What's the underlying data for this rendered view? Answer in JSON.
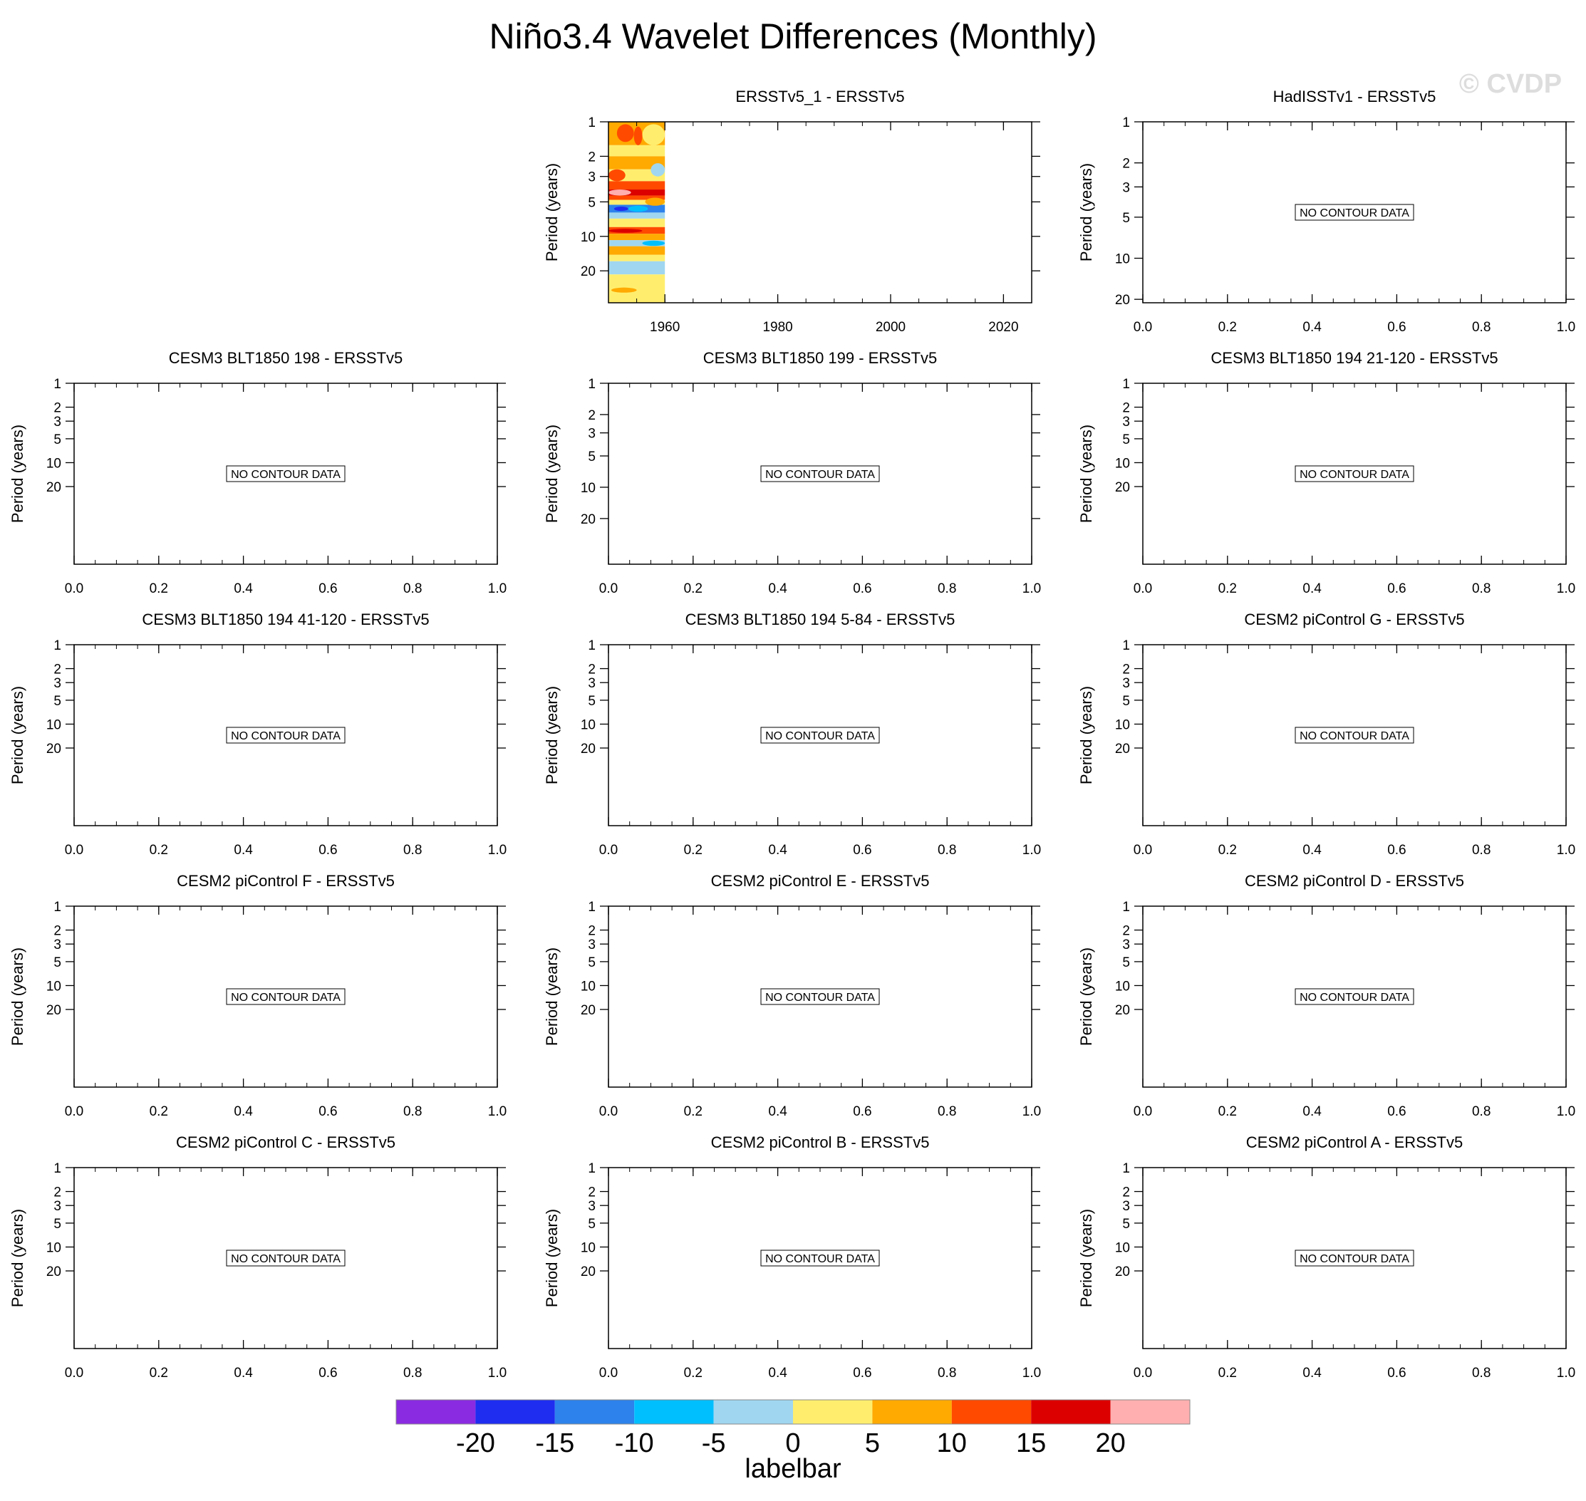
{
  "figure": {
    "title": "Niño3.4 Wavelet Differences (Monthly)",
    "watermark": "© CVDP",
    "ylabel": "Period (years)",
    "no_data_text": "NO CONTOUR DATA"
  },
  "chart_data": [
    {
      "type": "heatmap",
      "title": "ERSSTv5_1 - ERSSTv5",
      "ylabel": "Period (years)",
      "x_ticks": [
        1960,
        1980,
        2000,
        2020
      ],
      "xlim": [
        1950,
        2025
      ],
      "y_ticks": [
        1,
        2,
        3,
        5,
        10,
        20
      ],
      "y_scale": "log",
      "y_reversed": true,
      "ylim": [
        1,
        38
      ],
      "data_x_range": [
        1950,
        1960
      ],
      "bands": [
        {
          "p0": 1.0,
          "p1": 1.6,
          "level": 5
        },
        {
          "p0": 1.6,
          "p1": 2.0,
          "level": 0
        },
        {
          "p0": 2.0,
          "p1": 2.6,
          "level": 5
        },
        {
          "p0": 2.6,
          "p1": 3.3,
          "level": 0
        },
        {
          "p0": 3.3,
          "p1": 3.9,
          "level": 10
        },
        {
          "p0": 3.9,
          "p1": 4.4,
          "level": 15
        },
        {
          "p0": 4.4,
          "p1": 4.8,
          "level": 10
        },
        {
          "p0": 4.8,
          "p1": 5.3,
          "level": 0
        },
        {
          "p0": 5.3,
          "p1": 6.2,
          "level": -15
        },
        {
          "p0": 6.2,
          "p1": 7.0,
          "level": -5
        },
        {
          "p0": 7.0,
          "p1": 8.3,
          "level": 0
        },
        {
          "p0": 8.3,
          "p1": 9.5,
          "level": 10
        },
        {
          "p0": 9.5,
          "p1": 10.8,
          "level": 5
        },
        {
          "p0": 10.8,
          "p1": 12.2,
          "level": -5
        },
        {
          "p0": 12.2,
          "p1": 14.5,
          "level": 5
        },
        {
          "p0": 14.5,
          "p1": 16.5,
          "level": 0
        },
        {
          "p0": 16.5,
          "p1": 21.5,
          "level": -5
        },
        {
          "p0": 21.5,
          "p1": 38.0,
          "level": 0
        }
      ],
      "blobs": [
        {
          "x0": 1951.5,
          "x1": 1954.5,
          "p0": 1.05,
          "p1": 1.5,
          "level": 10
        },
        {
          "x0": 1954.5,
          "x1": 1956.0,
          "p0": 1.1,
          "p1": 1.6,
          "level": 10
        },
        {
          "x0": 1956.0,
          "x1": 1960.0,
          "p0": 1.05,
          "p1": 1.6,
          "level": 0
        },
        {
          "x0": 1950.0,
          "x1": 1953.0,
          "p0": 2.6,
          "p1": 3.3,
          "level": 10
        },
        {
          "x0": 1957.5,
          "x1": 1960.0,
          "p0": 2.3,
          "p1": 3.0,
          "level": -5
        },
        {
          "x0": 1950.0,
          "x1": 1954.0,
          "p0": 3.9,
          "p1": 4.4,
          "level": 20
        },
        {
          "x0": 1951.0,
          "x1": 1953.5,
          "p0": 5.5,
          "p1": 6.0,
          "level": -20
        },
        {
          "x0": 1953.5,
          "x1": 1957.0,
          "p0": 5.4,
          "p1": 6.1,
          "level": -10
        },
        {
          "x0": 1956.5,
          "x1": 1960.0,
          "p0": 4.6,
          "p1": 5.4,
          "level": 5
        },
        {
          "x0": 1956.0,
          "x1": 1960.0,
          "p0": 10.9,
          "p1": 12.1,
          "level": -10
        },
        {
          "x0": 1950.0,
          "x1": 1956.0,
          "p0": 8.6,
          "p1": 9.3,
          "level": 15
        },
        {
          "x0": 1950.5,
          "x1": 1955.0,
          "p0": 28.0,
          "p1": 31.0,
          "level": 5
        }
      ]
    },
    {
      "type": "heatmap",
      "title": "HadISSTv1 - ERSSTv5",
      "ylabel": "Period (years)",
      "no_data": true,
      "x_ticks": [
        0.0,
        0.2,
        0.4,
        0.6,
        0.8,
        1.0
      ],
      "xlim": [
        0,
        1
      ],
      "y_ticks": [
        1,
        2,
        3,
        5,
        10,
        20
      ],
      "y_scale": "log",
      "y_reversed": true,
      "ylim": [
        1,
        21.2
      ]
    },
    {
      "type": "heatmap",
      "title": "CESM3 BLT1850 198 - ERSSTv5",
      "ylabel": "Period (years)",
      "no_data": true,
      "x_ticks": [
        0.0,
        0.2,
        0.4,
        0.6,
        0.8,
        1.0
      ],
      "xlim": [
        0,
        1
      ],
      "y_ticks": [
        1,
        2,
        3,
        5,
        10,
        20
      ],
      "y_scale": "log",
      "y_reversed": true,
      "ylim": [
        1,
        190
      ]
    },
    {
      "type": "heatmap",
      "title": "CESM3 BLT1850 199 - ERSSTv5",
      "ylabel": "Period (years)",
      "no_data": true,
      "x_ticks": [
        0.0,
        0.2,
        0.4,
        0.6,
        0.8,
        1.0
      ],
      "xlim": [
        0,
        1
      ],
      "y_ticks": [
        1,
        2,
        3,
        5,
        10,
        20
      ],
      "y_scale": "log",
      "y_reversed": true,
      "ylim": [
        1,
        55
      ]
    },
    {
      "type": "heatmap",
      "title": "CESM3 BLT1850 194 21-120 - ERSSTv5",
      "ylabel": "Period (years)",
      "no_data": true,
      "x_ticks": [
        0.0,
        0.2,
        0.4,
        0.6,
        0.8,
        1.0
      ],
      "xlim": [
        0,
        1
      ],
      "y_ticks": [
        1,
        2,
        3,
        5,
        10,
        20
      ],
      "y_scale": "log",
      "y_reversed": true,
      "ylim": [
        1,
        190
      ]
    },
    {
      "type": "heatmap",
      "title": "CESM3 BLT1850 194 41-120 - ERSSTv5",
      "ylabel": "Period (years)",
      "no_data": true,
      "x_ticks": [
        0.0,
        0.2,
        0.4,
        0.6,
        0.8,
        1.0
      ],
      "xlim": [
        0,
        1
      ],
      "y_ticks": [
        1,
        2,
        3,
        5,
        10,
        20
      ],
      "y_scale": "log",
      "y_reversed": true,
      "ylim": [
        1,
        190
      ]
    },
    {
      "type": "heatmap",
      "title": "CESM3 BLT1850 194 5-84 - ERSSTv5",
      "ylabel": "Period (years)",
      "no_data": true,
      "x_ticks": [
        0.0,
        0.2,
        0.4,
        0.6,
        0.8,
        1.0
      ],
      "xlim": [
        0,
        1
      ],
      "y_ticks": [
        1,
        2,
        3,
        5,
        10,
        20
      ],
      "y_scale": "log",
      "y_reversed": true,
      "ylim": [
        1,
        190
      ]
    },
    {
      "type": "heatmap",
      "title": "CESM2 piControl G - ERSSTv5",
      "ylabel": "Period (years)",
      "no_data": true,
      "x_ticks": [
        0.0,
        0.2,
        0.4,
        0.6,
        0.8,
        1.0
      ],
      "xlim": [
        0,
        1
      ],
      "y_ticks": [
        1,
        2,
        3,
        5,
        10,
        20
      ],
      "y_scale": "log",
      "y_reversed": true,
      "ylim": [
        1,
        190
      ]
    },
    {
      "type": "heatmap",
      "title": "CESM2 piControl F - ERSSTv5",
      "ylabel": "Period (years)",
      "no_data": true,
      "x_ticks": [
        0.0,
        0.2,
        0.4,
        0.6,
        0.8,
        1.0
      ],
      "xlim": [
        0,
        1
      ],
      "y_ticks": [
        1,
        2,
        3,
        5,
        10,
        20
      ],
      "y_scale": "log",
      "y_reversed": true,
      "ylim": [
        1,
        190
      ]
    },
    {
      "type": "heatmap",
      "title": "CESM2 piControl E - ERSSTv5",
      "ylabel": "Period (years)",
      "no_data": true,
      "x_ticks": [
        0.0,
        0.2,
        0.4,
        0.6,
        0.8,
        1.0
      ],
      "xlim": [
        0,
        1
      ],
      "y_ticks": [
        1,
        2,
        3,
        5,
        10,
        20
      ],
      "y_scale": "log",
      "y_reversed": true,
      "ylim": [
        1,
        190
      ]
    },
    {
      "type": "heatmap",
      "title": "CESM2 piControl D - ERSSTv5",
      "ylabel": "Period (years)",
      "no_data": true,
      "x_ticks": [
        0.0,
        0.2,
        0.4,
        0.6,
        0.8,
        1.0
      ],
      "xlim": [
        0,
        1
      ],
      "y_ticks": [
        1,
        2,
        3,
        5,
        10,
        20
      ],
      "y_scale": "log",
      "y_reversed": true,
      "ylim": [
        1,
        190
      ]
    },
    {
      "type": "heatmap",
      "title": "CESM2 piControl C - ERSSTv5",
      "ylabel": "Period (years)",
      "no_data": true,
      "x_ticks": [
        0.0,
        0.2,
        0.4,
        0.6,
        0.8,
        1.0
      ],
      "xlim": [
        0,
        1
      ],
      "y_ticks": [
        1,
        2,
        3,
        5,
        10,
        20
      ],
      "y_scale": "log",
      "y_reversed": true,
      "ylim": [
        1,
        190
      ]
    },
    {
      "type": "heatmap",
      "title": "CESM2 piControl B - ERSSTv5",
      "ylabel": "Period (years)",
      "no_data": true,
      "x_ticks": [
        0.0,
        0.2,
        0.4,
        0.6,
        0.8,
        1.0
      ],
      "xlim": [
        0,
        1
      ],
      "y_ticks": [
        1,
        2,
        3,
        5,
        10,
        20
      ],
      "y_scale": "log",
      "y_reversed": true,
      "ylim": [
        1,
        190
      ]
    },
    {
      "type": "heatmap",
      "title": "CESM2 piControl A - ERSSTv5",
      "ylabel": "Period (years)",
      "no_data": true,
      "x_ticks": [
        0.0,
        0.2,
        0.4,
        0.6,
        0.8,
        1.0
      ],
      "xlim": [
        0,
        1
      ],
      "y_ticks": [
        1,
        2,
        3,
        5,
        10,
        20
      ],
      "y_scale": "log",
      "y_reversed": true,
      "ylim": [
        1,
        190
      ]
    }
  ],
  "colorbar": {
    "label": "labelbar",
    "levels": [
      -20,
      -15,
      -10,
      -5,
      0,
      5,
      10,
      15,
      20
    ],
    "colors": [
      "#8a2be2",
      "#1e2df0",
      "#2d82eb",
      "#00bfff",
      "#a0d6f0",
      "#ffee6e",
      "#ffaa00",
      "#ff4a00",
      "#dc0000",
      "#ffafaf"
    ]
  }
}
